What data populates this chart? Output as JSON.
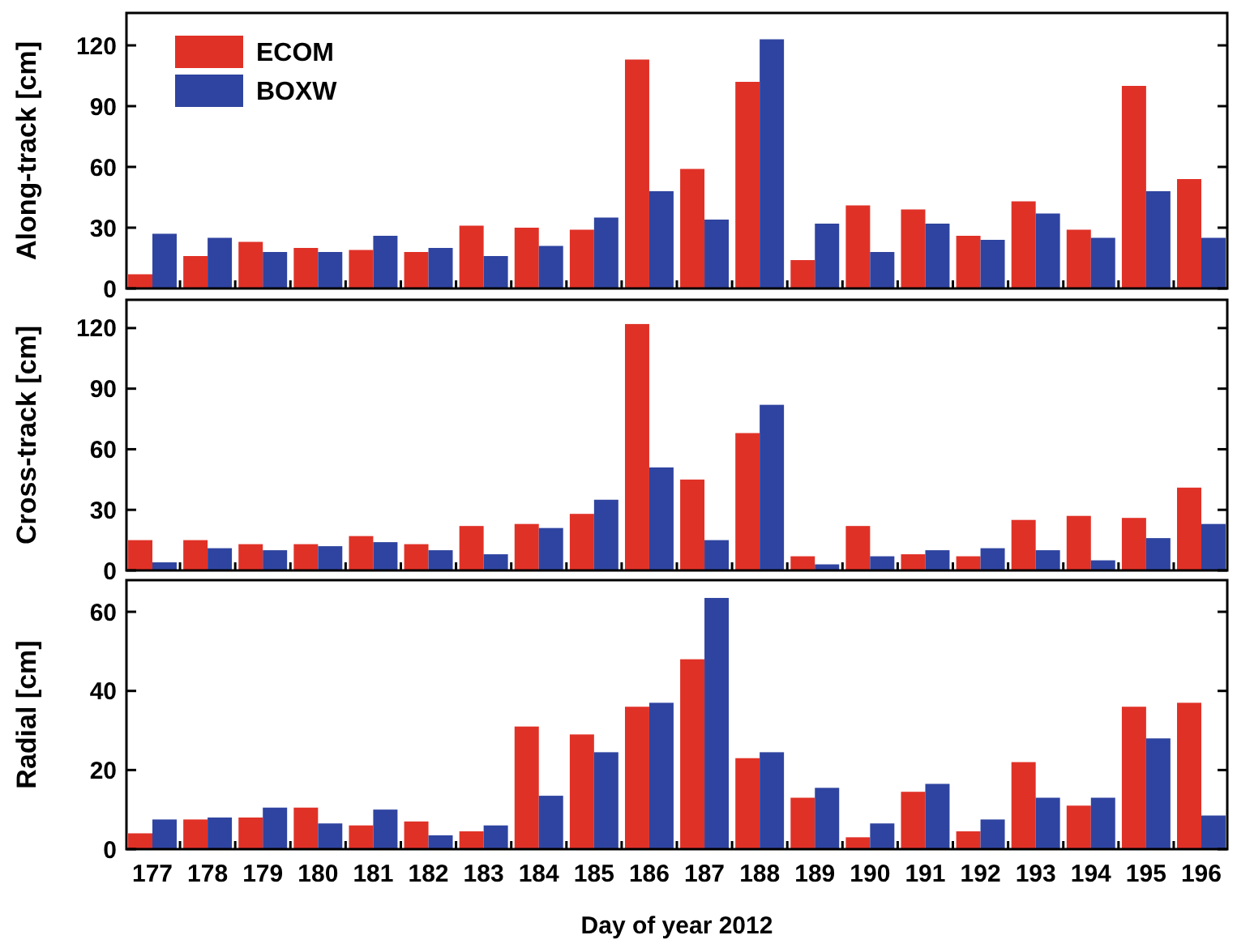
{
  "chart_data": [
    {
      "type": "bar",
      "ylabel": "Along-track [cm]",
      "categories": [
        "177",
        "178",
        "179",
        "180",
        "181",
        "182",
        "183",
        "184",
        "185",
        "186",
        "187",
        "188",
        "189",
        "190",
        "191",
        "192",
        "193",
        "194",
        "195",
        "196"
      ],
      "series": [
        {
          "name": "ECOM",
          "color": "#e03127",
          "values": [
            7,
            16,
            23,
            20,
            19,
            18,
            31,
            30,
            29,
            113,
            59,
            102,
            14,
            41,
            39,
            26,
            43,
            29,
            100,
            54
          ]
        },
        {
          "name": "BOXW",
          "color": "#2f44a0",
          "values": [
            27,
            25,
            18,
            18,
            26,
            20,
            16,
            21,
            35,
            48,
            34,
            123,
            32,
            18,
            32,
            24,
            37,
            25,
            48,
            25
          ]
        }
      ],
      "ylim": [
        0,
        136
      ],
      "yticks": [
        0,
        30,
        60,
        90,
        120
      ],
      "legend": "top left",
      "tick_labels": "y"
    },
    {
      "type": "bar",
      "ylabel": "Cross-track [cm]",
      "categories": [
        "177",
        "178",
        "179",
        "180",
        "181",
        "182",
        "183",
        "184",
        "185",
        "186",
        "187",
        "188",
        "189",
        "190",
        "191",
        "192",
        "193",
        "194",
        "195",
        "196"
      ],
      "series": [
        {
          "color": "#e03127",
          "values": [
            15,
            15,
            13,
            13,
            17,
            13,
            22,
            23,
            28,
            122,
            45,
            68,
            7,
            22,
            8,
            7,
            25,
            27,
            26,
            41
          ]
        },
        {
          "color": "#2f44a0",
          "values": [
            4,
            11,
            10,
            12,
            14,
            10,
            8,
            21,
            35,
            51,
            15,
            82,
            3,
            7,
            10,
            11,
            10,
            5,
            16,
            23
          ]
        }
      ],
      "ylim": [
        0,
        134
      ],
      "yticks": [
        0,
        30,
        60,
        90,
        120
      ],
      "tick_labels": "y"
    },
    {
      "type": "bar",
      "ylabel": "Radial [cm]",
      "xlabel": "Day of year 2012",
      "categories": [
        "177",
        "178",
        "179",
        "180",
        "181",
        "182",
        "183",
        "184",
        "185",
        "186",
        "187",
        "188",
        "189",
        "190",
        "191",
        "192",
        "193",
        "194",
        "195",
        "196"
      ],
      "series": [
        {
          "color": "#e03127",
          "values": [
            4,
            7.5,
            8,
            10.5,
            6,
            7,
            4.5,
            31,
            29,
            36,
            48,
            23,
            13,
            3,
            14.5,
            4.5,
            22,
            11,
            36,
            37
          ]
        },
        {
          "color": "#2f44a0",
          "values": [
            7.5,
            8,
            10.5,
            6.5,
            10,
            3.5,
            6,
            13.5,
            24.5,
            37,
            63.5,
            24.5,
            15.5,
            6.5,
            16.5,
            7.5,
            13,
            13,
            28,
            8.5
          ]
        }
      ],
      "ylim": [
        0,
        68
      ],
      "yticks": [
        0,
        20,
        40,
        60
      ]
    }
  ]
}
